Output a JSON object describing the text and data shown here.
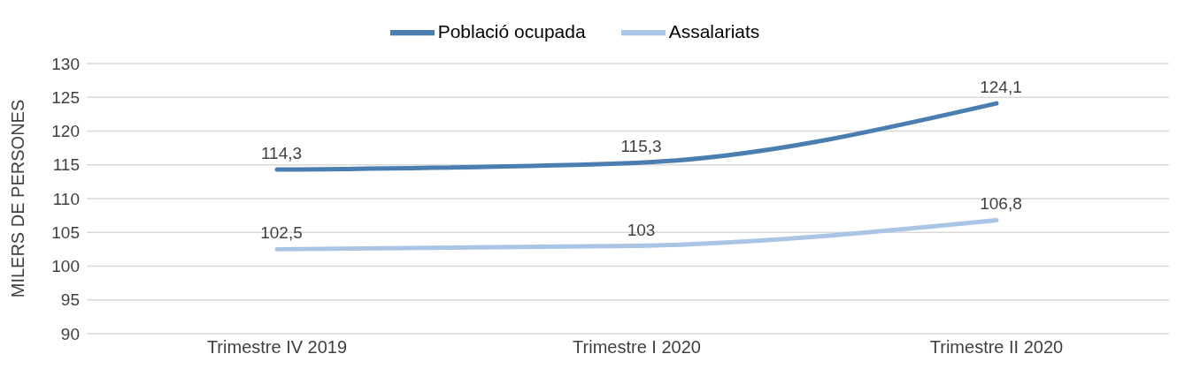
{
  "chart_data": {
    "type": "line",
    "ylabel": "MILERS DE PERSONES",
    "categories": [
      "Trimestre IV 2019",
      "Trimestre I 2020",
      "Trimestre II 2020"
    ],
    "series": [
      {
        "name": "Població ocupada",
        "color": "#4a7eb0",
        "values": [
          114.3,
          115.3,
          124.1
        ],
        "value_labels": [
          "114,3",
          "115,3",
          "124,1"
        ]
      },
      {
        "name": "Assalariats",
        "color": "#a9c4e4",
        "values": [
          102.5,
          103,
          106.8
        ],
        "value_labels": [
          "102,5",
          "103",
          "106,8"
        ]
      }
    ],
    "ylim": [
      90,
      130
    ],
    "yticks": [
      90,
      95,
      100,
      105,
      110,
      115,
      120,
      125,
      130
    ],
    "grid": "y",
    "legend": "top",
    "marker": "none",
    "line_style": "solid"
  }
}
